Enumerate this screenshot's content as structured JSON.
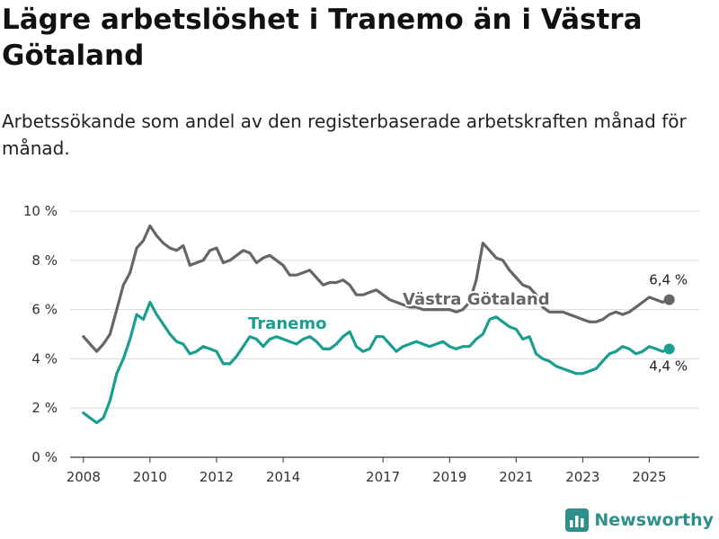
{
  "colors": {
    "vastra": "#666666",
    "tranemo": "#1a9e92",
    "grid": "#d9d9d9",
    "brand": "#2f8f8a"
  },
  "brand": {
    "name": "Newsworthy",
    "icon": "bar-chart-icon"
  },
  "chart_data": {
    "type": "line",
    "title": "Lägre arbetslöshet i Tranemo än i Västra Götaland",
    "subtitle": "Arbetssökande som andel av den registerbaserade arbetskraften månad för månad.",
    "xlabel": "",
    "ylabel": "",
    "xlim": [
      2007.6,
      2026.5
    ],
    "ylim": [
      0,
      10
    ],
    "yticks": [
      0,
      2,
      4,
      6,
      8,
      10
    ],
    "ytick_labels": [
      "0 %",
      "2 %",
      "4 %",
      "6 %",
      "8 %",
      "10 %"
    ],
    "xticks": [
      2008,
      2010,
      2012,
      2014,
      2017,
      2019,
      2021,
      2023,
      2025
    ],
    "xtick_labels": [
      "2008",
      "2010",
      "2012",
      "2014",
      "2017",
      "2019",
      "2021",
      "2023",
      "2025"
    ],
    "grid": true,
    "series": [
      {
        "name": "Västra Götaland",
        "label": "Västra Götaland",
        "end_label": "6,4 %",
        "x": [
          2008.0,
          2008.2,
          2008.4,
          2008.6,
          2008.8,
          2009.0,
          2009.2,
          2009.4,
          2009.6,
          2009.8,
          2010.0,
          2010.2,
          2010.4,
          2010.6,
          2010.8,
          2011.0,
          2011.2,
          2011.4,
          2011.6,
          2011.8,
          2012.0,
          2012.2,
          2012.4,
          2012.6,
          2012.8,
          2013.0,
          2013.2,
          2013.4,
          2013.6,
          2013.8,
          2014.0,
          2014.2,
          2014.4,
          2014.6,
          2014.8,
          2015.0,
          2015.2,
          2015.4,
          2015.6,
          2015.8,
          2016.0,
          2016.2,
          2016.4,
          2016.6,
          2016.8,
          2017.0,
          2017.2,
          2017.4,
          2017.6,
          2017.8,
          2018.0,
          2018.2,
          2018.4,
          2018.6,
          2018.8,
          2019.0,
          2019.2,
          2019.4,
          2019.6,
          2019.8,
          2020.0,
          2020.2,
          2020.4,
          2020.6,
          2020.8,
          2021.0,
          2021.2,
          2021.4,
          2021.6,
          2021.8,
          2022.0,
          2022.2,
          2022.4,
          2022.6,
          2022.8,
          2023.0,
          2023.2,
          2023.4,
          2023.6,
          2023.8,
          2024.0,
          2024.2,
          2024.4,
          2024.6,
          2024.8,
          2025.0,
          2025.2,
          2025.4,
          2025.6
        ],
        "values": [
          4.9,
          4.6,
          4.3,
          4.6,
          5.0,
          6.0,
          7.0,
          7.5,
          8.5,
          8.8,
          9.4,
          9.0,
          8.7,
          8.5,
          8.4,
          8.6,
          7.8,
          7.9,
          8.0,
          8.4,
          8.5,
          7.9,
          8.0,
          8.2,
          8.4,
          8.3,
          7.9,
          8.1,
          8.2,
          8.0,
          7.8,
          7.4,
          7.4,
          7.5,
          7.6,
          7.3,
          7.0,
          7.1,
          7.1,
          7.2,
          7.0,
          6.6,
          6.6,
          6.7,
          6.8,
          6.6,
          6.4,
          6.3,
          6.2,
          6.1,
          6.1,
          6.0,
          6.0,
          6.0,
          6.0,
          6.0,
          5.9,
          6.0,
          6.3,
          7.2,
          8.7,
          8.4,
          8.1,
          8.0,
          7.6,
          7.3,
          7.0,
          6.9,
          6.6,
          6.1,
          5.9,
          5.9,
          5.9,
          5.8,
          5.7,
          5.6,
          5.5,
          5.5,
          5.6,
          5.8,
          5.9,
          5.8,
          5.9,
          6.1,
          6.3,
          6.5,
          6.4,
          6.3,
          6.4
        ]
      },
      {
        "name": "Tranemo",
        "label": "Tranemo",
        "end_label": "4,4 %",
        "x": [
          2008.0,
          2008.2,
          2008.4,
          2008.6,
          2008.8,
          2009.0,
          2009.2,
          2009.4,
          2009.6,
          2009.8,
          2010.0,
          2010.2,
          2010.4,
          2010.6,
          2010.8,
          2011.0,
          2011.2,
          2011.4,
          2011.6,
          2011.8,
          2012.0,
          2012.2,
          2012.4,
          2012.6,
          2012.8,
          2013.0,
          2013.2,
          2013.4,
          2013.6,
          2013.8,
          2014.0,
          2014.2,
          2014.4,
          2014.6,
          2014.8,
          2015.0,
          2015.2,
          2015.4,
          2015.6,
          2015.8,
          2016.0,
          2016.2,
          2016.4,
          2016.6,
          2016.8,
          2017.0,
          2017.2,
          2017.4,
          2017.6,
          2017.8,
          2018.0,
          2018.2,
          2018.4,
          2018.6,
          2018.8,
          2019.0,
          2019.2,
          2019.4,
          2019.6,
          2019.8,
          2020.0,
          2020.2,
          2020.4,
          2020.6,
          2020.8,
          2021.0,
          2021.2,
          2021.4,
          2021.6,
          2021.8,
          2022.0,
          2022.2,
          2022.4,
          2022.6,
          2022.8,
          2023.0,
          2023.2,
          2023.4,
          2023.6,
          2023.8,
          2024.0,
          2024.2,
          2024.4,
          2024.6,
          2024.8,
          2025.0,
          2025.2,
          2025.4,
          2025.6
        ],
        "values": [
          1.8,
          1.6,
          1.4,
          1.6,
          2.3,
          3.4,
          4.0,
          4.8,
          5.8,
          5.6,
          6.3,
          5.8,
          5.4,
          5.0,
          4.7,
          4.6,
          4.2,
          4.3,
          4.5,
          4.4,
          4.3,
          3.8,
          3.8,
          4.1,
          4.5,
          4.9,
          4.8,
          4.5,
          4.8,
          4.9,
          4.8,
          4.7,
          4.6,
          4.8,
          4.9,
          4.7,
          4.4,
          4.4,
          4.6,
          4.9,
          5.1,
          4.5,
          4.3,
          4.4,
          4.9,
          4.9,
          4.6,
          4.3,
          4.5,
          4.6,
          4.7,
          4.6,
          4.5,
          4.6,
          4.7,
          4.5,
          4.4,
          4.5,
          4.5,
          4.8,
          5.0,
          5.6,
          5.7,
          5.5,
          5.3,
          5.2,
          4.8,
          4.9,
          4.2,
          4.0,
          3.9,
          3.7,
          3.6,
          3.5,
          3.4,
          3.4,
          3.5,
          3.6,
          3.9,
          4.2,
          4.3,
          4.5,
          4.4,
          4.2,
          4.3,
          4.5,
          4.4,
          4.3,
          4.4
        ]
      }
    ]
  }
}
